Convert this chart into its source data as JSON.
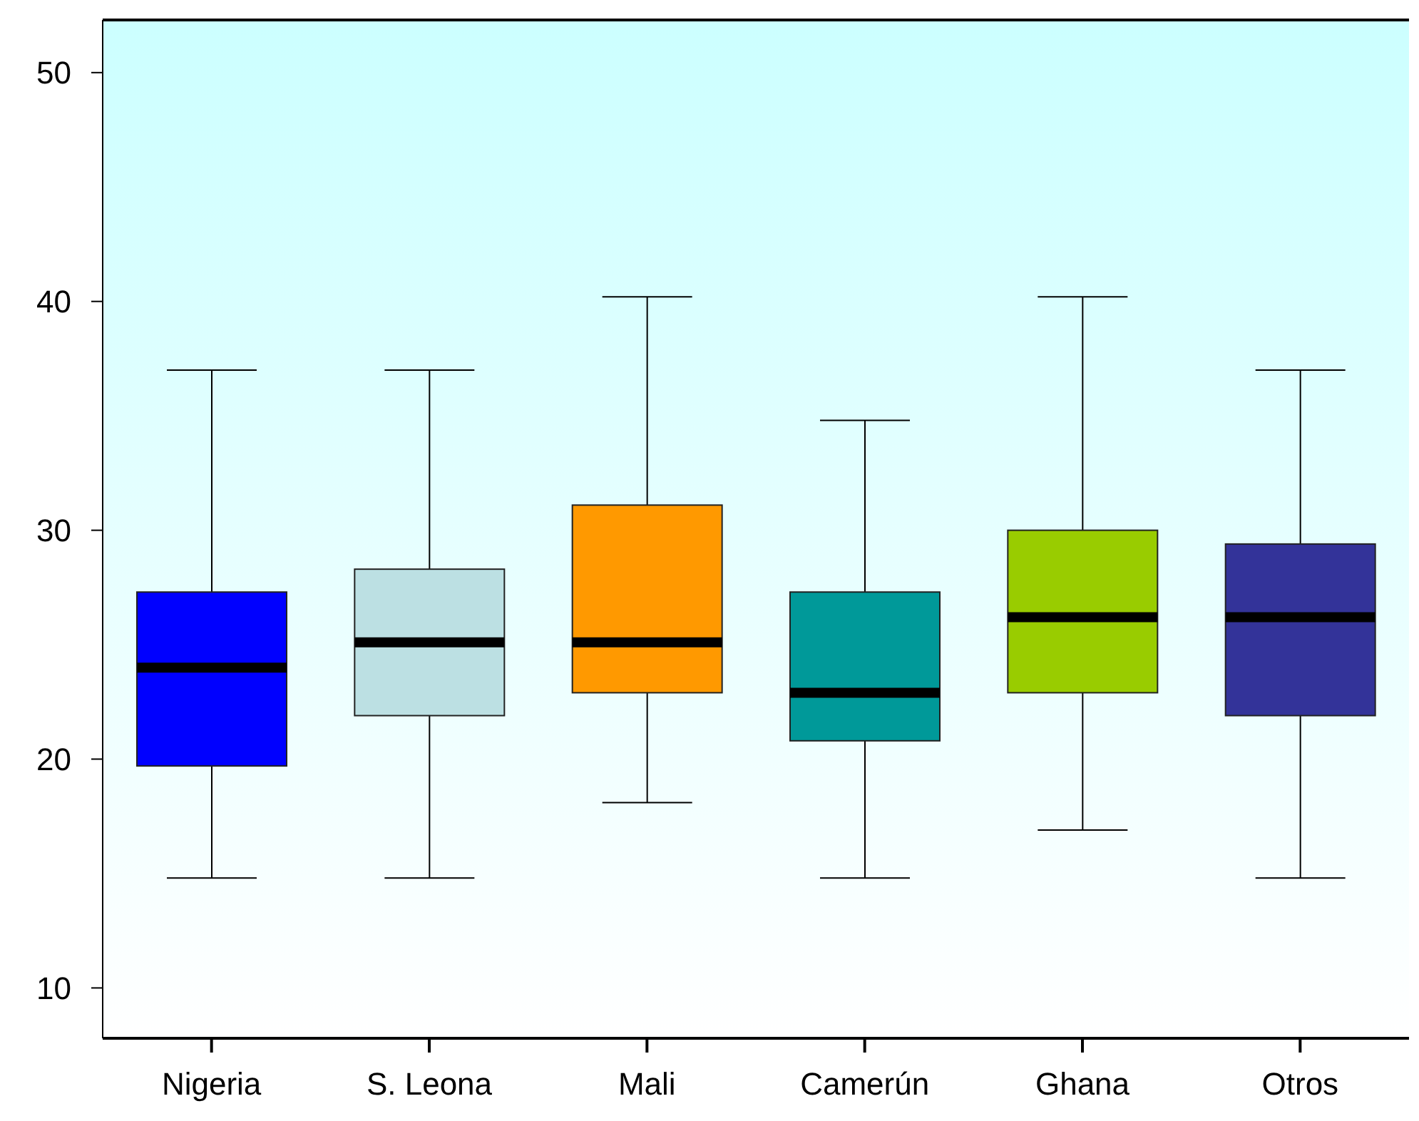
{
  "chart_data": {
    "type": "box",
    "categories": [
      "Nigeria",
      "S. Leona",
      "Mali",
      "Camerún",
      "Ghana",
      "Otros"
    ],
    "colors": [
      "#0000ff",
      "#bce0e3",
      "#ff9900",
      "#009999",
      "#99cc00",
      "#333399"
    ],
    "boxes": [
      {
        "low": 14.8,
        "q1": 19.7,
        "median": 24.0,
        "q3": 27.3,
        "high": 37.0
      },
      {
        "low": 14.8,
        "q1": 21.9,
        "median": 25.1,
        "q3": 28.3,
        "high": 37.0
      },
      {
        "low": 18.1,
        "q1": 22.9,
        "median": 25.1,
        "q3": 31.1,
        "high": 40.2
      },
      {
        "low": 14.8,
        "q1": 20.8,
        "median": 22.9,
        "q3": 27.3,
        "high": 34.8
      },
      {
        "low": 16.9,
        "q1": 22.9,
        "median": 26.2,
        "q3": 30.0,
        "high": 40.2
      },
      {
        "low": 14.8,
        "q1": 21.9,
        "median": 26.2,
        "q3": 29.4,
        "high": 37.0
      }
    ],
    "ylim": [
      7.8,
      52.3
    ],
    "yticks": [
      10,
      20,
      30,
      40,
      50
    ],
    "grid": false
  }
}
